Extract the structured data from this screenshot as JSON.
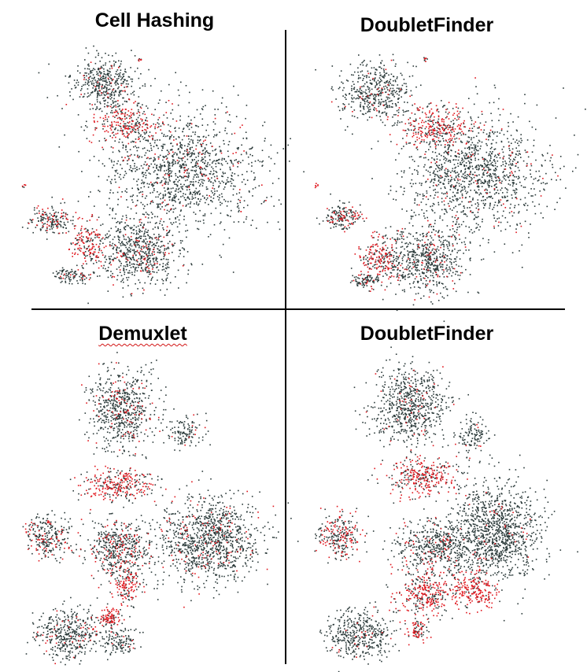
{
  "chart_data": [
    {
      "type": "scatter",
      "title": "Cell Hashing",
      "series": [],
      "colors": {
        "singlet": "#2b3a3a",
        "doublet": "#e0161d"
      }
    },
    {
      "type": "scatter",
      "title": "DoubletFinder",
      "series": [],
      "colors": {
        "singlet": "#2b3a3a",
        "doublet": "#e0161d"
      }
    },
    {
      "type": "scatter",
      "title": "Demuxlet",
      "series": [],
      "colors": {
        "singlet": "#2b3a3a",
        "doublet": "#e0161d"
      }
    },
    {
      "type": "scatter",
      "title": "DoubletFinder",
      "series": [],
      "colors": {
        "singlet": "#2b3a3a",
        "doublet": "#e0161d"
      }
    }
  ]
}
